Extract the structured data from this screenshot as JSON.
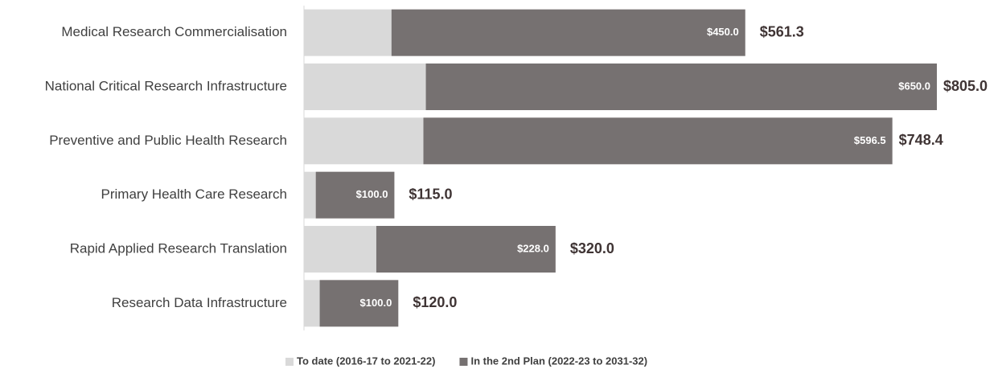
{
  "chart_data": {
    "type": "stacked_barh",
    "categories": [
      "Medical Research Commercialisation",
      "National Critical Research Infrastructure",
      "Preventive and Public Health Research",
      "Primary Health Care Research",
      "Rapid Applied Research Translation",
      "Research Data Infrastructure"
    ],
    "series": [
      {
        "name": "To date (2016-17 to 2021-22)",
        "color": "#d9d9d9",
        "values": [
          111.3,
          155.0,
          151.9,
          15.0,
          92.0,
          20.0
        ]
      },
      {
        "name": "In the 2nd Plan (2022-23 to 2031-32)",
        "color": "#767171",
        "values": [
          450.0,
          650.0,
          596.5,
          100.0,
          228.0,
          100.0
        ],
        "value_labels": [
          "$450.0",
          "$650.0",
          "$596.5",
          "$100.0",
          "$228.0",
          "$100.0"
        ]
      }
    ],
    "total_labels": [
      "$561.3",
      "$805.0",
      "$748.4",
      "$115.0",
      "$320.0",
      "$120.0"
    ],
    "xlim": [
      0,
      805
    ],
    "legend": "bottom"
  }
}
